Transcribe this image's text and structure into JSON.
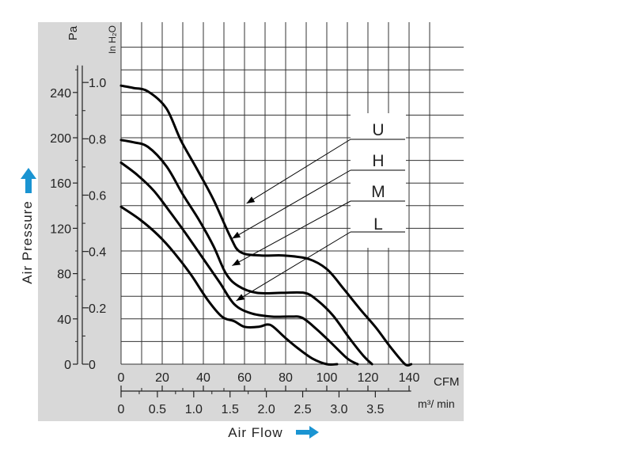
{
  "chart_data": {
    "type": "line",
    "title": "",
    "xlabel": "Air Flow",
    "ylabel": "Air Pressure",
    "x_unit_primary": "CFM",
    "x_unit_secondary": "m³/ min",
    "y_unit_primary": "Pa",
    "y_unit_secondary": "In H₂O",
    "xlim": [
      0,
      150
    ],
    "ylim_pa": [
      0,
      290
    ],
    "grid": true,
    "x_ticks_cfm": [
      "0",
      "20",
      "40",
      "60",
      "80",
      "100",
      "120",
      "140"
    ],
    "x_ticks_m3min": [
      "0",
      "0.5",
      "1.0",
      "1.5",
      "2.0",
      "2.5",
      "3.0",
      "3.5"
    ],
    "y_ticks_pa": [
      "0",
      "40",
      "80",
      "120",
      "160",
      "200",
      "240"
    ],
    "y_ticks_inh2o": [
      "0",
      "0.2",
      "0.4",
      "0.6",
      "0.8",
      "1.0"
    ],
    "series": [
      {
        "name": "U",
        "x": [
          0,
          6,
          13,
          22,
          29,
          37,
          45,
          53,
          58,
          68,
          79,
          91,
          100,
          108,
          116,
          124,
          131,
          138,
          141
        ],
        "y": [
          246,
          244,
          241,
          226,
          198,
          172,
          145,
          113,
          99,
          96,
          96,
          93,
          84,
          67,
          49,
          32,
          15,
          0,
          0
        ]
      },
      {
        "name": "H",
        "x": [
          0,
          6,
          13,
          22,
          30,
          38,
          45,
          51,
          57,
          66,
          78,
          89,
          95,
          103,
          111,
          118,
          122
        ],
        "y": [
          198,
          196,
          192,
          175,
          150,
          127,
          104,
          80,
          69,
          63,
          63,
          63,
          57,
          43,
          23,
          7,
          0
        ]
      },
      {
        "name": "M",
        "x": [
          0,
          8,
          16,
          24,
          32,
          40,
          48,
          55,
          63,
          73,
          82,
          88,
          95,
          102,
          110,
          115
        ],
        "y": [
          178,
          167,
          153,
          134,
          114,
          93,
          72,
          53,
          45,
          42,
          42,
          41,
          31,
          19,
          5,
          0
        ]
      },
      {
        "name": "L",
        "x": [
          0,
          9,
          18,
          26,
          34,
          42,
          49,
          55,
          60,
          67,
          71,
          74,
          80,
          86,
          93,
          100,
          105
        ],
        "y": [
          139,
          128,
          114,
          98,
          79,
          57,
          42,
          38,
          33,
          33,
          35,
          33,
          23,
          14,
          5,
          0,
          0
        ]
      }
    ],
    "curve_labels": [
      {
        "text": "U",
        "points_to": [
          61,
          142
        ]
      },
      {
        "text": "H",
        "points_to": [
          54,
          111
        ]
      },
      {
        "text": "M",
        "points_to": [
          54,
          87
        ]
      },
      {
        "text": "L",
        "points_to": [
          56,
          56
        ]
      }
    ]
  }
}
